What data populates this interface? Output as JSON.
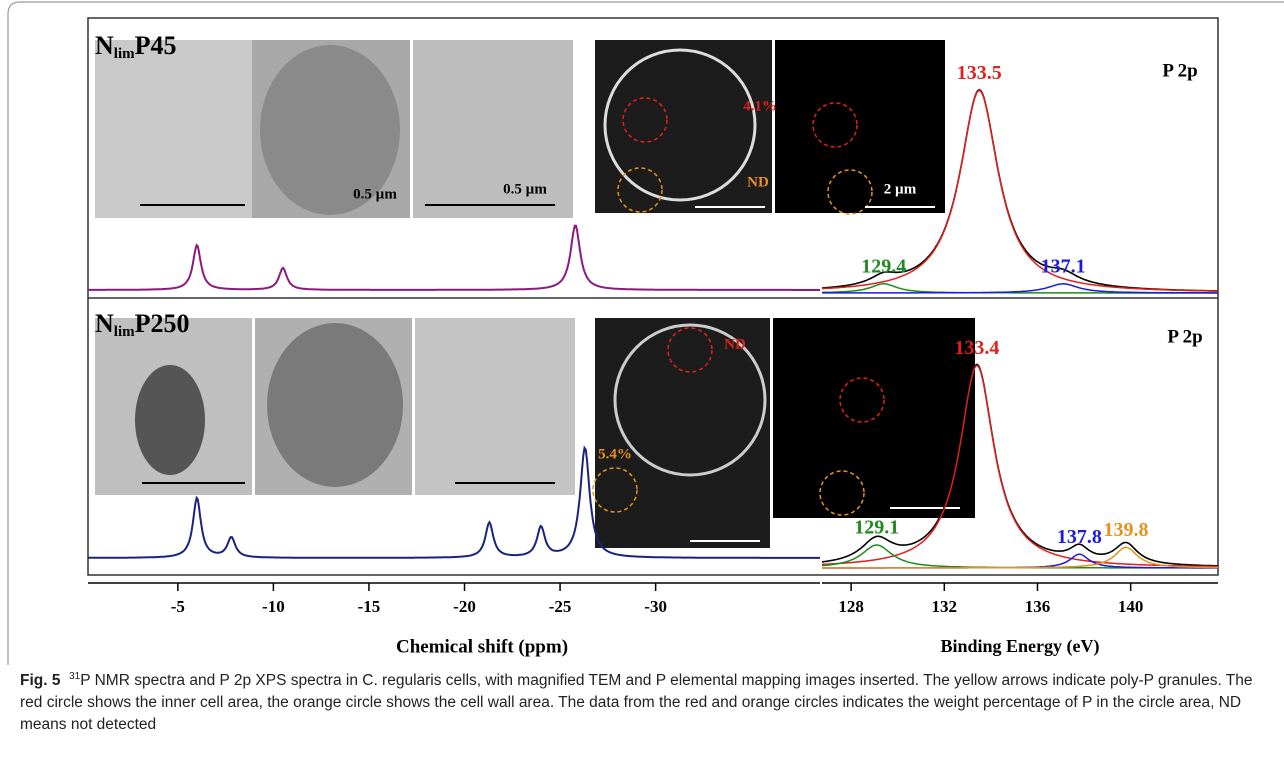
{
  "figure": {
    "panels": [
      {
        "name": {
          "main": "N",
          "sub": "lim",
          "tail": "P45"
        },
        "scale_bars": [
          "0.5 µm",
          "0.5 µm",
          "2 µm"
        ],
        "map_labels": [
          {
            "text": "4.1%",
            "color": "#e0201b"
          },
          {
            "text": "ND",
            "color": "#e8901c"
          }
        ],
        "nmr": {
          "color": "#8b1a7e",
          "peaks": [
            {
              "center": -6,
              "height": 45,
              "width": 0.5
            },
            {
              "center": -10.5,
              "height": 22,
              "width": 0.5
            },
            {
              "center": -25.8,
              "height": 65,
              "width": 0.6
            }
          ]
        },
        "xps": {
          "label": "P 2p",
          "peaks": [
            {
              "center": 133.5,
              "height": 88,
              "width": 2.0,
              "color": "#e0201b"
            },
            {
              "center": 129.4,
              "height": 4,
              "width": 1.4,
              "color": "#1f8a1f"
            },
            {
              "center": 137.1,
              "height": 4,
              "width": 1.6,
              "color": "#1a1ae0"
            }
          ]
        }
      },
      {
        "name": {
          "main": "N",
          "sub": "lim",
          "tail": "P250"
        },
        "scale_bars": [],
        "map_labels": [
          {
            "text": "ND",
            "color": "#e0201b"
          },
          {
            "text": "5.4%",
            "color": "#e8901c"
          }
        ],
        "nmr": {
          "color": "#1a237e",
          "peaks": [
            {
              "center": -6,
              "height": 60,
              "width": 0.5
            },
            {
              "center": -7.8,
              "height": 20,
              "width": 0.5
            },
            {
              "center": -21.3,
              "height": 35,
              "width": 0.5
            },
            {
              "center": -24,
              "height": 30,
              "width": 0.5
            },
            {
              "center": -26.3,
              "height": 110,
              "width": 0.6
            }
          ]
        },
        "xps": {
          "label": "P 2p",
          "peaks": [
            {
              "center": 133.4,
              "height": 88,
              "width": 1.8,
              "color": "#e0201b"
            },
            {
              "center": 129.1,
              "height": 10,
              "width": 1.6,
              "color": "#1f8a1f"
            },
            {
              "center": 137.8,
              "height": 6,
              "width": 1.0,
              "color": "#1a1ae0"
            },
            {
              "center": 139.8,
              "height": 9,
              "width": 1.2,
              "color": "#e8901c"
            }
          ]
        }
      }
    ],
    "nmr_axis": {
      "label": "Chemical shift (ppm)",
      "xlim": [
        -0.3,
        -38.6
      ],
      "xticks": [
        -5,
        -10,
        -15,
        -20,
        -25,
        -30
      ],
      "ylim": [
        0,
        130
      ]
    },
    "xps_axis": {
      "label": "Binding Energy (eV)",
      "xlim": [
        126.75,
        143.75
      ],
      "xticks": [
        128,
        132,
        136,
        140
      ],
      "ylim": [
        0,
        100
      ]
    }
  },
  "caption": {
    "label": "Fig. 5",
    "sup": "31",
    "text": "P NMR spectra and P 2p XPS spectra in C. regularis cells, with magnified TEM and P elemental mapping images inserted. The yellow arrows indicate poly-P granules. The red circle shows the inner cell area, the orange circle shows the cell wall area. The data from the red and orange circles indicates the weight percentage of P in the circle area, ND means not detected"
  }
}
